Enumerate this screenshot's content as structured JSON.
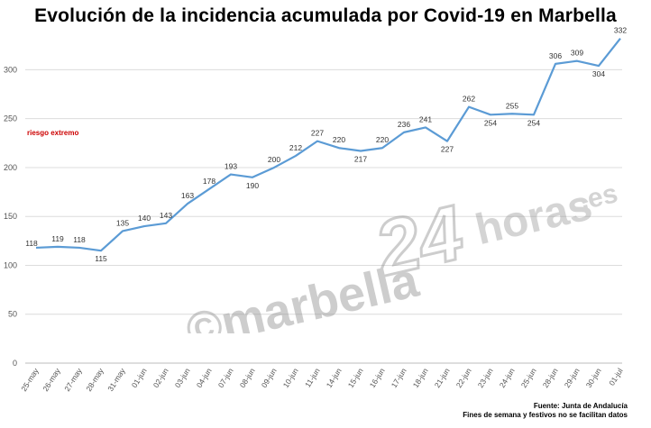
{
  "chart_data": {
    "type": "line",
    "title": "Evolución de la incidencia acumulada por Covid-19 en Marbella",
    "categories": [
      "25-may",
      "26-may",
      "27-may",
      "28-may",
      "31-may",
      "01-jun",
      "02-jun",
      "03-jun",
      "04-jun",
      "07-jun",
      "08-jun",
      "09-jun",
      "10-jun",
      "11-jun",
      "14-jun",
      "15-jun",
      "16-jun",
      "17-jun",
      "18-jun",
      "21-jun",
      "22-jun",
      "23-jun",
      "24-jun",
      "25-jun",
      "28-jun",
      "29-jun",
      "30-jun",
      "01-jul"
    ],
    "values": [
      118,
      119,
      118,
      115,
      135,
      140,
      143,
      163,
      178,
      193,
      190,
      200,
      212,
      227,
      220,
      217,
      220,
      236,
      241,
      227,
      262,
      254,
      255,
      254,
      306,
      309,
      304,
      332
    ],
    "y_ticks": [
      "0",
      "50",
      "100",
      "150",
      "200",
      "250",
      "300"
    ],
    "ylim": [
      0,
      340
    ],
    "grid": true,
    "line_color": "#5b9bd5",
    "annotation": "riesgo extremo",
    "annotation_color": "#cc0000",
    "watermark": "©marbella24horas.es",
    "source": "Fuente: Junta de Andalucía",
    "note": "Fines de semana y festivos no se facilitan datos"
  }
}
